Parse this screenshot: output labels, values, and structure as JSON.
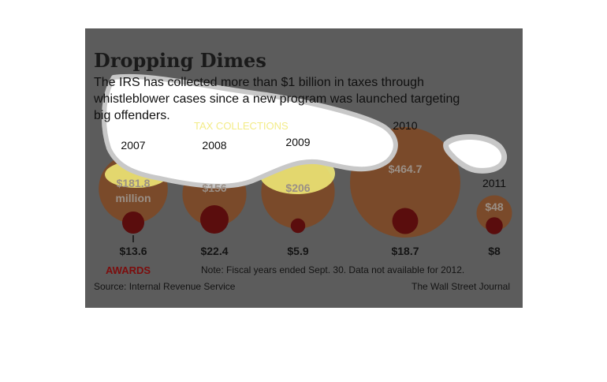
{
  "chart_data": {
    "type": "bubble",
    "title": "Dropping Dimes",
    "subtitle_lines": [
      "The IRS has collected more than $1 billion in taxes through",
      "whistleblower cases since a new program was launched targeting",
      "big offenders."
    ],
    "categories": [
      "2007",
      "2008",
      "2009",
      "2010",
      "2011"
    ],
    "series": [
      {
        "name": "TAX COLLECTIONS",
        "values": [
          181.8,
          156,
          206,
          464.7,
          48
        ],
        "labels": [
          [
            "$181.8",
            "million"
          ],
          [
            "$156"
          ],
          [
            "$206"
          ],
          [
            "$464.7"
          ],
          [
            "$48"
          ]
        ],
        "color": "#7a4a2a"
      },
      {
        "name": "AWARDS",
        "values": [
          13.6,
          22.4,
          5.9,
          18.7,
          8
        ],
        "labels": [
          "$13.6",
          "$22.4",
          "$5.9",
          "$18.7",
          "$8"
        ],
        "color": "#5a0d0d"
      }
    ],
    "note": "Note: Fiscal years ended Sept. 30. Data not available for 2012.",
    "source": "Source: Internal Revenue Service",
    "credit": "The Wall Street Journal"
  },
  "colors": {
    "background": "#5c5c5c",
    "collection_bubble": "#7a4a2a",
    "award_bubble": "#5a0d0d",
    "highlight": "#f6f07a",
    "overlay": "#ffffff"
  }
}
